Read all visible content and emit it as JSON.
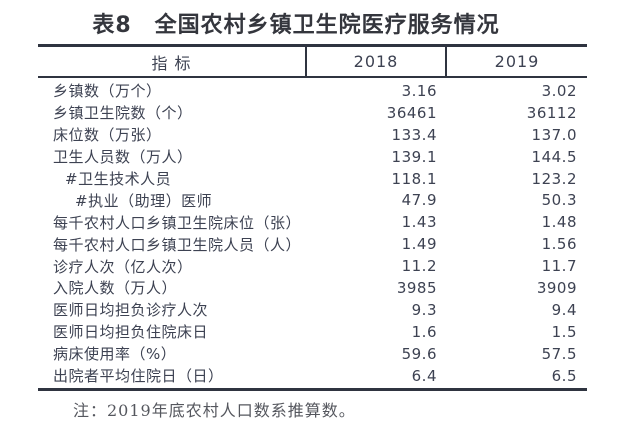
{
  "title": "表8　全国农村乡镇卫生院医疗服务情况",
  "table": {
    "columns": {
      "indicator": "指 标",
      "y2018": "2018",
      "y2019": "2019"
    },
    "rows": [
      {
        "label": "乡镇数（万个）",
        "indent": 0,
        "v2018": "3.16",
        "v2019": "3.02"
      },
      {
        "label": "乡镇卫生院数（个）",
        "indent": 0,
        "v2018": "36461",
        "v2019": "36112"
      },
      {
        "label": "床位数（万张）",
        "indent": 0,
        "v2018": "133.4",
        "v2019": "137.0"
      },
      {
        "label": "卫生人员数（万人）",
        "indent": 0,
        "v2018": "139.1",
        "v2019": "144.5"
      },
      {
        "label": "#卫生技术人员",
        "indent": 1,
        "v2018": "118.1",
        "v2019": "123.2"
      },
      {
        "label": "#执业（助理）医师",
        "indent": 2,
        "v2018": "47.9",
        "v2019": "50.3"
      },
      {
        "label": "每千农村人口乡镇卫生院床位（张）",
        "indent": 0,
        "v2018": "1.43",
        "v2019": "1.48"
      },
      {
        "label": "每千农村人口乡镇卫生院人员（人）",
        "indent": 0,
        "v2018": "1.49",
        "v2019": "1.56"
      },
      {
        "label": "诊疗人次（亿人次）",
        "indent": 0,
        "v2018": "11.2",
        "v2019": "11.7"
      },
      {
        "label": "入院人数（万人）",
        "indent": 0,
        "v2018": "3985",
        "v2019": "3909"
      },
      {
        "label": "医师日均担负诊疗人次",
        "indent": 0,
        "v2018": "9.3",
        "v2019": "9.4"
      },
      {
        "label": "医师日均担负住院床日",
        "indent": 0,
        "v2018": "1.6",
        "v2019": "1.5"
      },
      {
        "label": "病床使用率（%）",
        "indent": 0,
        "v2018": "59.6",
        "v2019": "57.5"
      },
      {
        "label": "出院者平均住院日（日）",
        "indent": 0,
        "v2018": "6.4",
        "v2019": "6.5"
      }
    ]
  },
  "note": "注：2019年底农村人口数系推算数。",
  "colors": {
    "ink": "#3d4252",
    "title_ink": "#34363d",
    "rule_line": "#2f3440",
    "note_ink": "#55575e",
    "background": "#ffffff"
  }
}
